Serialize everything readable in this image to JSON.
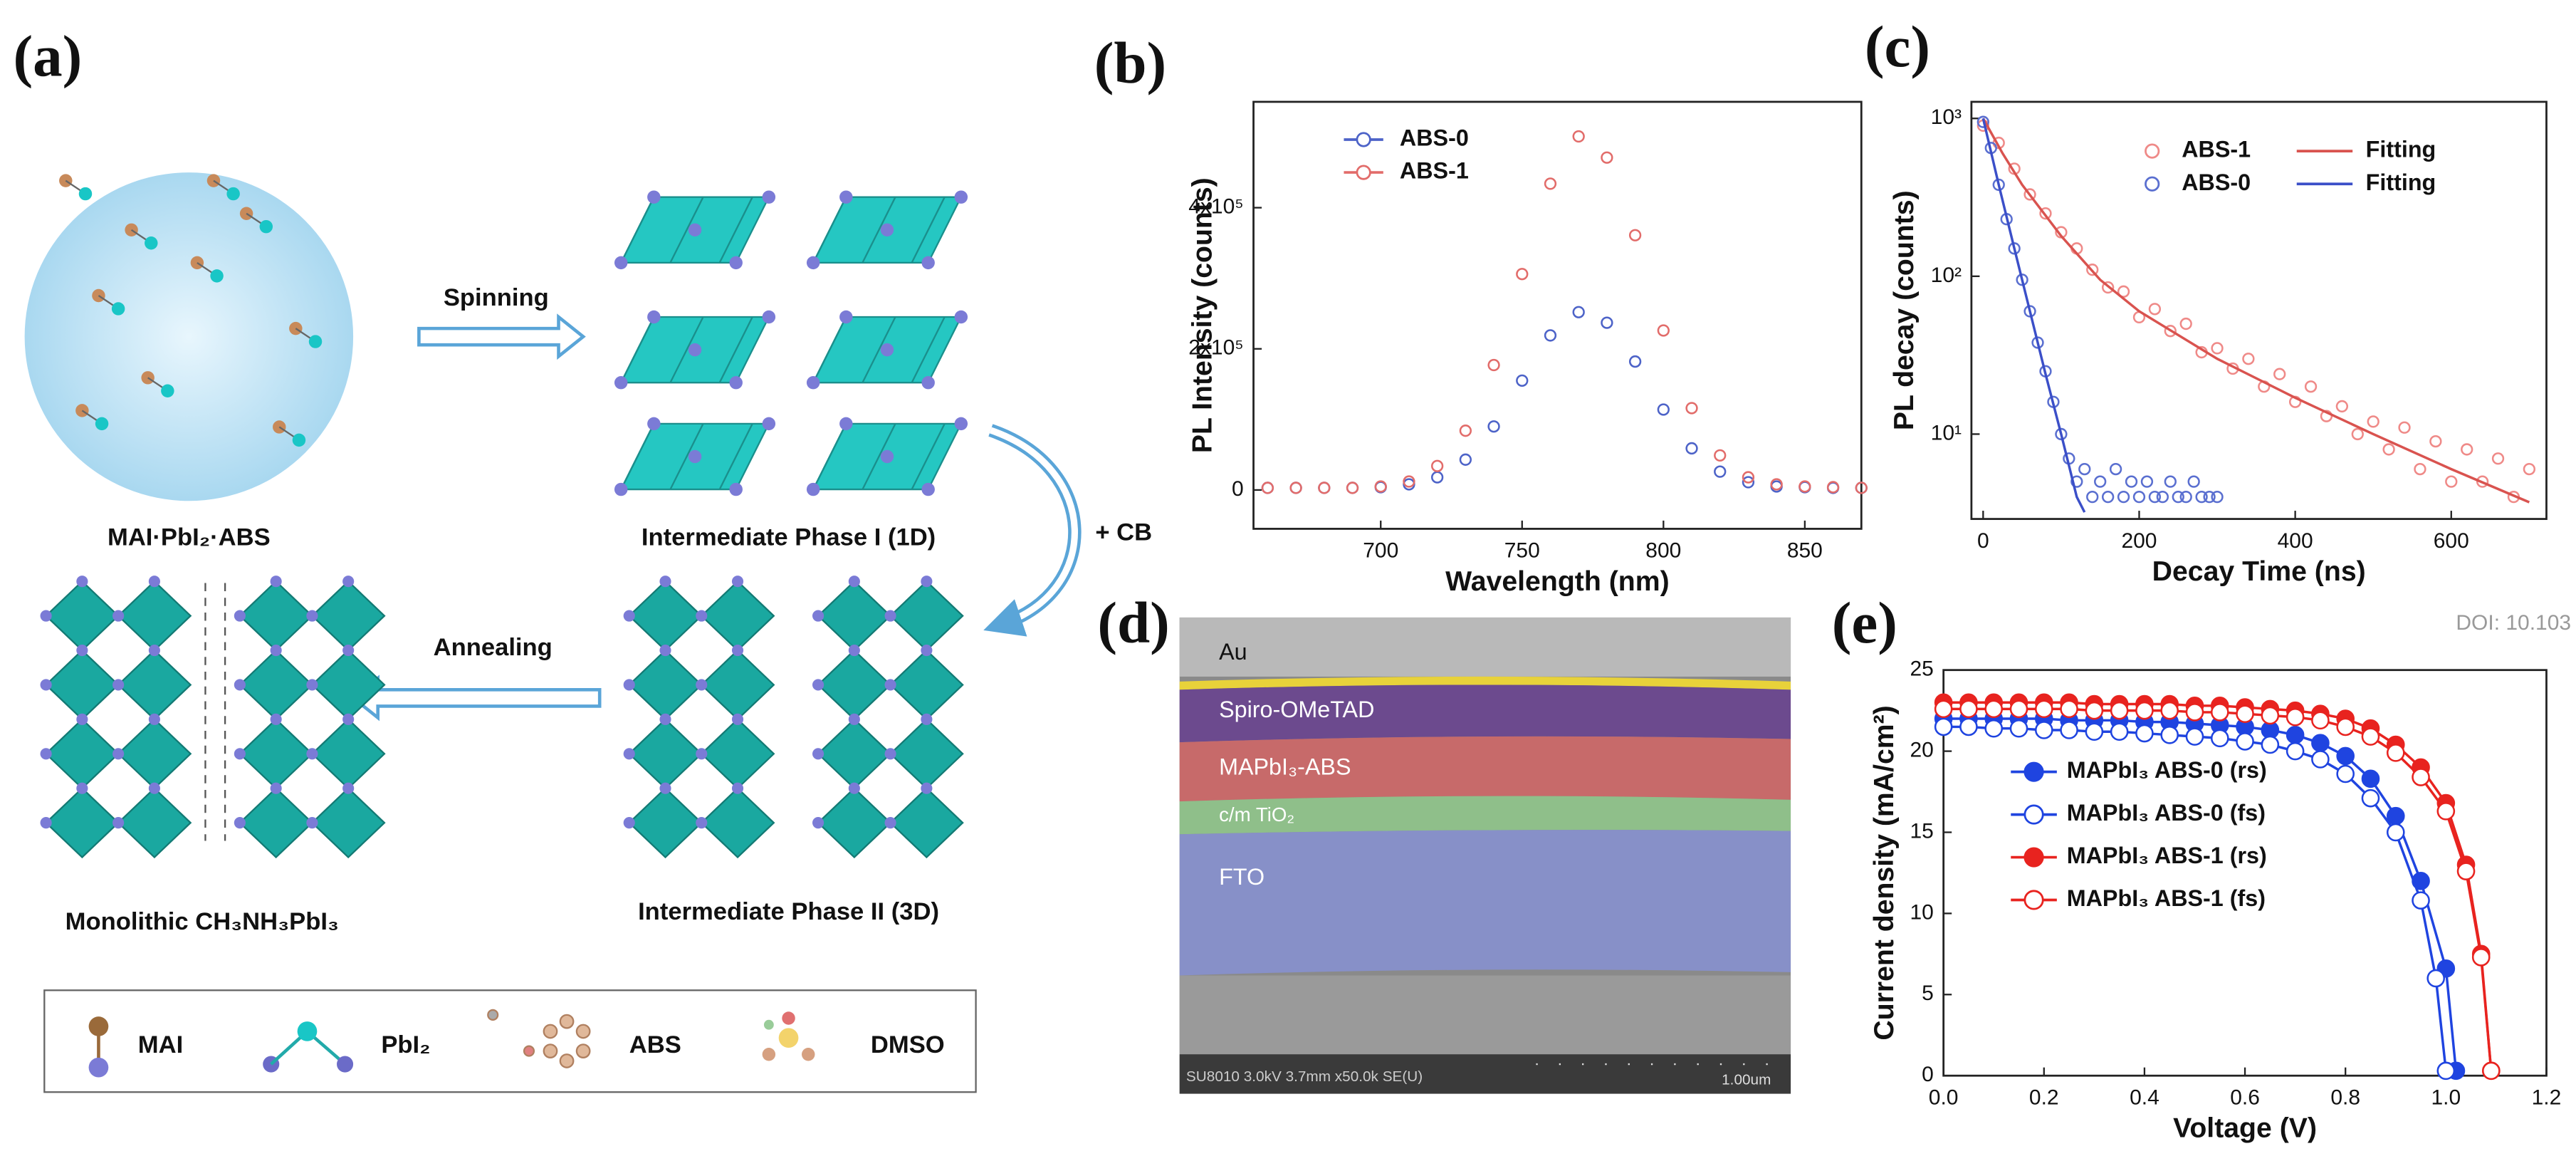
{
  "panel_a": {
    "label": "(a)",
    "states": [
      "MAI·PbI₂·ABS",
      "Intermediate Phase I (1D)",
      "Intermediate Phase II (3D)",
      "Monolithic CH₃NH₃PbI₃"
    ],
    "steps": [
      "Spinning",
      "+ CB",
      "Annealing"
    ],
    "legend": [
      "MAI",
      "PbI₂",
      "ABS",
      "DMSO"
    ]
  },
  "panel_d": {
    "label": "(d)",
    "layers": [
      "Au",
      "Spiro-OMeTAD",
      "MAPbI₃-ABS",
      "c/m TiO₂",
      "FTO"
    ],
    "info": "SU8010 3.0kV 3.7mm x50.0k SE(U)",
    "scale": "1.00um"
  },
  "watermark": "DOI: 10.103",
  "chart_data": [
    {
      "type": "scatter",
      "label": "(b)",
      "x_label": "Wavelength (nm)",
      "y_label": "PL Intensity (counts)",
      "x": [
        660,
        670,
        680,
        690,
        700,
        710,
        720,
        730,
        740,
        750,
        760,
        770,
        780,
        790,
        800,
        810,
        820,
        830,
        840,
        850,
        860,
        870
      ],
      "series": [
        {
          "name": "ABS-0",
          "color": "#4d63c8",
          "values": [
            3000,
            3000,
            3000,
            3000,
            4000,
            8000,
            18000,
            43000,
            90000,
            155000,
            219000,
            252000,
            237000,
            182000,
            114000,
            59000,
            26000,
            11000,
            5000,
            4000,
            3000,
            3000
          ]
        },
        {
          "name": "ABS-1",
          "color": "#e26c6a",
          "values": [
            3000,
            3000,
            3000,
            3000,
            5000,
            12000,
            34000,
            84000,
            177000,
            306000,
            434000,
            501000,
            471000,
            361000,
            226000,
            116000,
            49000,
            18000,
            8000,
            5000,
            4000,
            3000
          ]
        }
      ],
      "xlim": [
        655,
        870
      ],
      "xticks": [
        700,
        750,
        800,
        850
      ],
      "ylim": [
        -55000,
        550000
      ],
      "yticks": [
        0,
        {
          "value": 200000,
          "label": "2x10⁵"
        },
        {
          "value": 400000,
          "label": "4x10⁵"
        }
      ]
    },
    {
      "type": "scatter",
      "label": "(c)",
      "x_label": "Decay Time (ns)",
      "y_label": "PL decay (counts)",
      "log_y": true,
      "series": [
        {
          "name": "ABS-1",
          "color": "#ef8a88",
          "mode": "markers",
          "x": [
            0,
            20,
            40,
            60,
            80,
            100,
            120,
            140,
            160,
            180,
            200,
            220,
            240,
            260,
            280,
            300,
            320,
            340,
            360,
            380,
            400,
            420,
            440,
            460,
            480,
            500,
            520,
            540,
            560,
            580,
            600,
            620,
            640,
            660,
            680,
            700
          ],
          "values": [
            900,
            700,
            480,
            330,
            250,
            190,
            150,
            110,
            85,
            80,
            55,
            62,
            45,
            50,
            33,
            35,
            26,
            30,
            20,
            24,
            16,
            20,
            13,
            15,
            10,
            12,
            8,
            11,
            6,
            9,
            5,
            8,
            5,
            7,
            4,
            6
          ]
        },
        {
          "name": "ABS-0",
          "color": "#5a6fd0",
          "mode": "markers",
          "x": [
            0,
            10,
            20,
            30,
            40,
            50,
            60,
            70,
            80,
            90,
            100,
            110,
            120,
            130,
            140,
            150,
            160,
            170,
            180,
            190,
            200,
            210,
            220,
            230,
            240,
            250,
            260,
            270,
            280,
            290,
            300
          ],
          "values": [
            950,
            650,
            380,
            230,
            150,
            95,
            60,
            38,
            25,
            16,
            10,
            7,
            5,
            6,
            4,
            5,
            4,
            6,
            4,
            5,
            4,
            5,
            4,
            4,
            5,
            4,
            4,
            5,
            4,
            4,
            4
          ]
        },
        {
          "name": "Fitting",
          "color": "#d9534f",
          "mode": "line",
          "x": [
            0,
            25,
            50,
            100,
            150,
            200,
            300,
            400,
            500,
            600,
            700
          ],
          "values": [
            1000,
            600,
            380,
            180,
            95,
            60,
            30,
            17,
            10,
            6,
            3.7
          ]
        },
        {
          "name": "Fitting",
          "color": "#3b4fc8",
          "mode": "line",
          "x": [
            0,
            20,
            40,
            60,
            80,
            100,
            120,
            130
          ],
          "values": [
            1000,
            380,
            150,
            60,
            24,
            10,
            4,
            3.2
          ]
        }
      ],
      "xlim": [
        -15,
        722
      ],
      "xticks": [
        0,
        200,
        400,
        600
      ],
      "ylim": [
        2.9,
        1274
      ],
      "yticks": [
        {
          "value": 10,
          "label": "10¹"
        },
        {
          "value": 100,
          "label": "10²"
        },
        {
          "value": 1000,
          "label": "10³"
        }
      ]
    },
    {
      "type": "line",
      "label": "(e)",
      "x_label": "Voltage (V)",
      "y_label": "Current density (mA/cm²)",
      "series": [
        {
          "name": "MAPbI₃ ABS-0 (rs)",
          "color": "#1f44e0",
          "marker": "filled",
          "x": [
            0,
            0.05,
            0.1,
            0.15,
            0.2,
            0.25,
            0.3,
            0.35,
            0.4,
            0.45,
            0.5,
            0.55,
            0.6,
            0.65,
            0.7,
            0.75,
            0.8,
            0.85,
            0.9,
            0.95,
            1.0,
            1.02
          ],
          "values": [
            22.0,
            22.0,
            22.0,
            22.0,
            22.0,
            21.9,
            21.9,
            21.9,
            21.8,
            21.8,
            21.7,
            21.6,
            21.5,
            21.3,
            21.0,
            20.5,
            19.7,
            18.3,
            16.0,
            12.0,
            6.6,
            0.3
          ]
        },
        {
          "name": "MAPbI₃ ABS-0 (fs)",
          "color": "#1f44e0",
          "marker": "open",
          "x": [
            0,
            0.05,
            0.1,
            0.15,
            0.2,
            0.25,
            0.3,
            0.35,
            0.4,
            0.45,
            0.5,
            0.55,
            0.6,
            0.65,
            0.7,
            0.75,
            0.8,
            0.85,
            0.9,
            0.95,
            0.98,
            1.0
          ],
          "values": [
            21.5,
            21.5,
            21.4,
            21.4,
            21.3,
            21.3,
            21.2,
            21.2,
            21.1,
            21.0,
            20.9,
            20.8,
            20.6,
            20.4,
            20.0,
            19.5,
            18.6,
            17.1,
            15.0,
            10.8,
            6.0,
            0.3
          ]
        },
        {
          "name": "MAPbI₃ ABS-1 (rs)",
          "color": "#e8231f",
          "marker": "filled",
          "x": [
            0,
            0.05,
            0.1,
            0.15,
            0.2,
            0.25,
            0.3,
            0.35,
            0.4,
            0.45,
            0.5,
            0.55,
            0.6,
            0.65,
            0.7,
            0.75,
            0.8,
            0.85,
            0.9,
            0.95,
            1.0,
            1.04,
            1.07,
            1.09
          ],
          "values": [
            23.0,
            23.0,
            23.0,
            23.0,
            23.0,
            23.0,
            22.9,
            22.9,
            22.9,
            22.9,
            22.8,
            22.8,
            22.7,
            22.6,
            22.5,
            22.3,
            22.0,
            21.4,
            20.4,
            19.0,
            16.8,
            13.0,
            7.5,
            0.3
          ]
        },
        {
          "name": "MAPbI₃ ABS-1 (fs)",
          "color": "#e8231f",
          "marker": "open",
          "x": [
            0,
            0.05,
            0.1,
            0.15,
            0.2,
            0.25,
            0.3,
            0.35,
            0.4,
            0.45,
            0.5,
            0.55,
            0.6,
            0.65,
            0.7,
            0.75,
            0.8,
            0.85,
            0.9,
            0.95,
            1.0,
            1.04,
            1.07,
            1.09
          ],
          "values": [
            22.6,
            22.6,
            22.6,
            22.6,
            22.6,
            22.6,
            22.5,
            22.5,
            22.5,
            22.5,
            22.4,
            22.4,
            22.3,
            22.2,
            22.1,
            21.9,
            21.5,
            20.9,
            19.9,
            18.4,
            16.3,
            12.6,
            7.3,
            0.3
          ]
        }
      ],
      "xlim": [
        0,
        1.2
      ],
      "xticks": [
        {
          "value": 0,
          "label": "0.0"
        },
        0.2,
        0.4,
        0.6,
        0.8,
        {
          "value": 1,
          "label": "1.0"
        },
        1.2
      ],
      "ylim": [
        0,
        25
      ],
      "yticks": [
        0,
        5,
        10,
        15,
        20,
        25
      ]
    }
  ]
}
